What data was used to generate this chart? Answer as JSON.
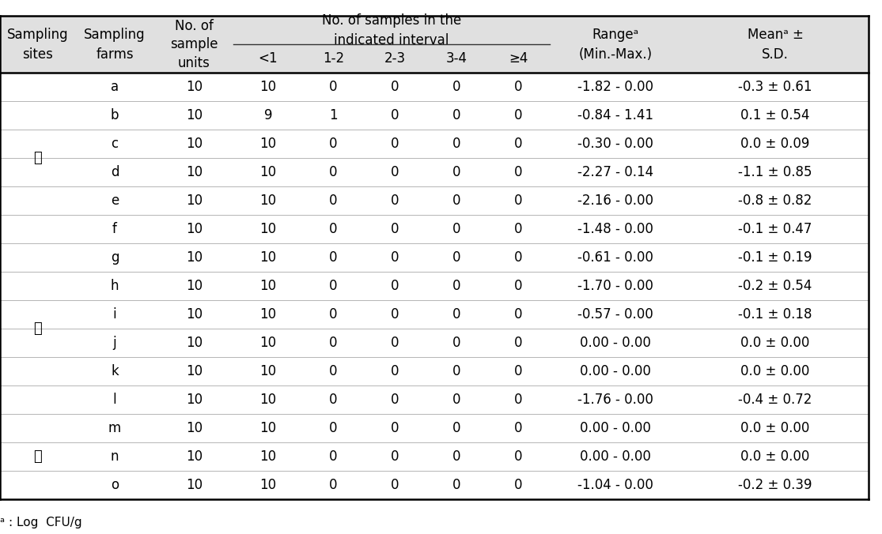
{
  "col_headers_sub": [
    "<1",
    "1-2",
    "2-3",
    "3-4",
    "≥4"
  ],
  "rows": [
    [
      "a",
      "10",
      "10",
      "0",
      "0",
      "0",
      "0",
      "-1.82 - 0.00",
      "-0.3 ± 0.61"
    ],
    [
      "b",
      "10",
      "9",
      "1",
      "0",
      "0",
      "0",
      "-0.84 - 1.41",
      "0.1 ± 0.54"
    ],
    [
      "c",
      "10",
      "10",
      "0",
      "0",
      "0",
      "0",
      "-0.30 - 0.00",
      "0.0 ± 0.09"
    ],
    [
      "d",
      "10",
      "10",
      "0",
      "0",
      "0",
      "0",
      "-2.27 - 0.14",
      "-1.1 ± 0.85"
    ],
    [
      "e",
      "10",
      "10",
      "0",
      "0",
      "0",
      "0",
      "-2.16 - 0.00",
      "-0.8 ± 0.82"
    ],
    [
      "f",
      "10",
      "10",
      "0",
      "0",
      "0",
      "0",
      "-1.48 - 0.00",
      "-0.1 ± 0.47"
    ],
    [
      "g",
      "10",
      "10",
      "0",
      "0",
      "0",
      "0",
      "-0.61 - 0.00",
      "-0.1 ± 0.19"
    ],
    [
      "h",
      "10",
      "10",
      "0",
      "0",
      "0",
      "0",
      "-1.70 - 0.00",
      "-0.2 ± 0.54"
    ],
    [
      "i",
      "10",
      "10",
      "0",
      "0",
      "0",
      "0",
      "-0.57 - 0.00",
      "-0.1 ± 0.18"
    ],
    [
      "j",
      "10",
      "10",
      "0",
      "0",
      "0",
      "0",
      "0.00 - 0.00",
      "0.0 ± 0.00"
    ],
    [
      "k",
      "10",
      "10",
      "0",
      "0",
      "0",
      "0",
      "0.00 - 0.00",
      "0.0 ± 0.00"
    ],
    [
      "l",
      "10",
      "10",
      "0",
      "0",
      "0",
      "0",
      "-1.76 - 0.00",
      "-0.4 ± 0.72"
    ],
    [
      "m",
      "10",
      "10",
      "0",
      "0",
      "0",
      "0",
      "0.00 - 0.00",
      "0.0 ± 0.00"
    ],
    [
      "n",
      "10",
      "10",
      "0",
      "0",
      "0",
      "0",
      "0.00 - 0.00",
      "0.0 ± 0.00"
    ],
    [
      "o",
      "10",
      "10",
      "0",
      "0",
      "0",
      "0",
      "-1.04 - 0.00",
      "-0.2 ± 0.39"
    ]
  ],
  "site_groups": [
    {
      "이름": "가",
      "start": 0,
      "end": 5
    },
    {
      "이름": "나",
      "start": 6,
      "end": 11
    },
    {
      "이름": "다",
      "start": 12,
      "end": 14
    }
  ],
  "footnote": "ᵃ : Log  CFU/g",
  "bg_header": "#e0e0e0",
  "bg_white": "#ffffff",
  "text_color": "#000000",
  "font_size": 12,
  "header_font_size": 12,
  "line_color": "#555555",
  "thick_line_color": "#000000"
}
